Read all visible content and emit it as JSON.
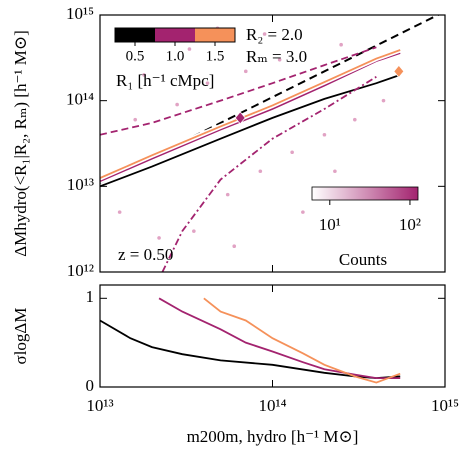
{
  "chart_data": [
    {
      "type": "line",
      "panel": "top",
      "ylabel": "ΔMhydro(<R₁|R₂, Rₘ) [h⁻¹ M⊙]",
      "xlog": true,
      "ylog": true,
      "xlim": [
        10000000000000.0,
        1000000000000000.0
      ],
      "ylim": [
        1000000000000.0,
        1000000000000000.0
      ],
      "xticks": [
        {
          "value": 10000000000000.0,
          "label": ""
        },
        {
          "value": 100000000000000.0,
          "label": ""
        },
        {
          "value": 1000000000000000.0,
          "label": ""
        }
      ],
      "yticks": [
        {
          "value": 1000000000000.0,
          "label": "10¹²"
        },
        {
          "value": 10000000000000.0,
          "label": "10¹³"
        },
        {
          "value": 100000000000000.0,
          "label": "10¹⁴"
        },
        {
          "value": 1000000000000000.0,
          "label": "10¹⁵"
        }
      ],
      "reference_line": {
        "color": "#000000",
        "x": [
          10000000000000.0,
          1000000000000000.0
        ],
        "values": [
          11000000000000.0,
          1100000000000000.0
        ]
      },
      "series": [
        {
          "color": "#000000",
          "linestyle": "solid",
          "x": [
            10000000000000.0,
            20000000000000.0,
            50000000000000.0,
            100000000000000.0,
            200000000000000.0,
            400000000000000.0,
            550000000000000.0
          ],
          "values": [
            10000000000000.0,
            17000000000000.0,
            36000000000000.0,
            63000000000000.0,
            105000000000000.0,
            160000000000000.0,
            200000000000000.0
          ]
        },
        {
          "color": "#a3236f",
          "linestyle": "solid",
          "x": [
            10000000000000.0,
            20000000000000.0,
            50000000000000.0,
            100000000000000.0,
            200000000000000.0,
            400000000000000.0,
            550000000000000.0
          ],
          "values": [
            11500000000000.0,
            21000000000000.0,
            46000000000000.0,
            80000000000000.0,
            150000000000000.0,
            290000000000000.0,
            360000000000000.0
          ]
        },
        {
          "color": "#f5915a",
          "linestyle": "solid",
          "x": [
            10000000000000.0,
            20000000000000.0,
            50000000000000.0,
            100000000000000.0,
            200000000000000.0,
            400000000000000.0,
            550000000000000.0
          ],
          "values": [
            12500000000000.0,
            23000000000000.0,
            50000000000000.0,
            88000000000000.0,
            165000000000000.0,
            310000000000000.0,
            390000000000000.0
          ]
        },
        {
          "color": "#a3236f",
          "linestyle": "dashed",
          "x": [
            10000000000000.0,
            20000000000000.0,
            50000000000000.0,
            100000000000000.0,
            200000000000000.0,
            400000000000000.0
          ],
          "values": [
            40000000000000.0,
            55000000000000.0,
            100000000000000.0,
            160000000000000.0,
            260000000000000.0,
            420000000000000.0
          ]
        },
        {
          "color": "#a3236f",
          "linestyle": "dashdot",
          "x": [
            23000000000000.0,
            30000000000000.0,
            50000000000000.0,
            100000000000000.0,
            200000000000000.0,
            400000000000000.0
          ],
          "values": [
            1000000000000.0,
            3000000000000.0,
            12000000000000.0,
            36000000000000.0,
            80000000000000.0,
            190000000000000.0
          ]
        }
      ],
      "markers": [
        {
          "color": "#a3236f",
          "x": 65000000000000.0,
          "value": 63000000000000.0
        },
        {
          "color": "#f5915a",
          "x": 540000000000000.0,
          "value": 220000000000000.0
        }
      ],
      "scatter": {
        "color": "#d98cb5",
        "x": [
          13000000000000.0,
          16000000000000.0,
          22000000000000.0,
          28000000000000.0,
          35000000000000.0,
          42000000000000.0,
          55000000000000.0,
          70000000000000.0,
          85000000000000.0,
          110000000000000.0,
          130000000000000.0,
          160000000000000.0,
          200000000000000.0,
          250000000000000.0,
          300000000000000.0,
          360000000000000.0,
          440000000000000.0,
          33000000000000.0,
          60000000000000.0,
          150000000000000.0,
          230000000000000.0,
          18000000000000.0,
          48000000000000.0,
          90000000000000.0
        ],
        "values": [
          5000000000000.0,
          60000000000000.0,
          2500000000000.0,
          90000000000000.0,
          3000000000000.0,
          160000000000000.0,
          8000000000000.0,
          220000000000000.0,
          15000000000000.0,
          300000000000000.0,
          25000000000000.0,
          120000000000000.0,
          40000000000000.0,
          450000000000000.0,
          60000000000000.0,
          260000000000000.0,
          100000000000000.0,
          400000000000000.0,
          2000000000000.0,
          5000000000000.0,
          15000000000000.0,
          200000000000000.0,
          700000000000000.0,
          600000000000000.0
        ]
      },
      "annotations": [
        "R₂ = 2.0",
        "Rₘ = 3.0",
        "z = 0.50"
      ],
      "colorbar_r1": {
        "label": "R₁ [h⁻¹ cMpc]",
        "colors": [
          "#000000",
          "#a3236f",
          "#f5915a"
        ],
        "ticks": [
          0.5,
          {
            "value": 1.0,
            "label": "1.0"
          },
          1.5
        ]
      },
      "colorbar_counts": {
        "label": "Counts",
        "lim": [
          6,
          126
        ],
        "log": true,
        "color_low": "#ffffff",
        "color_high": "#a3236f",
        "ticks": [
          {
            "value": 10,
            "label": "10¹"
          },
          {
            "value": 100,
            "label": "10²"
          }
        ]
      }
    },
    {
      "type": "line",
      "panel": "bottom",
      "ylabel": "σlogΔM",
      "xlabel": "m200m, hydro [h⁻¹ M⊙]",
      "xlog": true,
      "xlim": [
        10000000000000.0,
        1000000000000000.0
      ],
      "ylim": [
        0,
        1.15
      ],
      "xticks": [
        {
          "value": 10000000000000.0,
          "label": "10¹³"
        },
        {
          "value": 100000000000000.0,
          "label": "10¹⁴"
        },
        {
          "value": 1000000000000000.0,
          "label": "10¹⁵"
        }
      ],
      "yticks": [
        0,
        1
      ],
      "series": [
        {
          "color": "#000000",
          "linestyle": "solid",
          "x": [
            10000000000000.0,
            15000000000000.0,
            20000000000000.0,
            30000000000000.0,
            50000000000000.0,
            100000000000000.0,
            200000000000000.0,
            300000000000000.0,
            400000000000000.0,
            550000000000000.0
          ],
          "values": [
            0.75,
            0.55,
            0.45,
            0.37,
            0.3,
            0.25,
            0.16,
            0.12,
            0.1,
            0.12
          ]
        },
        {
          "color": "#a3236f",
          "linestyle": "solid",
          "x": [
            22000000000000.0,
            30000000000000.0,
            50000000000000.0,
            70000000000000.0,
            100000000000000.0,
            150000000000000.0,
            200000000000000.0,
            300000000000000.0,
            400000000000000.0,
            550000000000000.0
          ],
          "values": [
            1.0,
            0.85,
            0.65,
            0.5,
            0.4,
            0.28,
            0.2,
            0.14,
            0.1,
            0.1
          ]
        },
        {
          "color": "#f5915a",
          "linestyle": "solid",
          "x": [
            40000000000000.0,
            50000000000000.0,
            70000000000000.0,
            100000000000000.0,
            150000000000000.0,
            200000000000000.0,
            300000000000000.0,
            400000000000000.0,
            550000000000000.0
          ],
          "values": [
            1.0,
            0.85,
            0.75,
            0.55,
            0.38,
            0.25,
            0.12,
            0.05,
            0.15
          ]
        }
      ]
    }
  ]
}
